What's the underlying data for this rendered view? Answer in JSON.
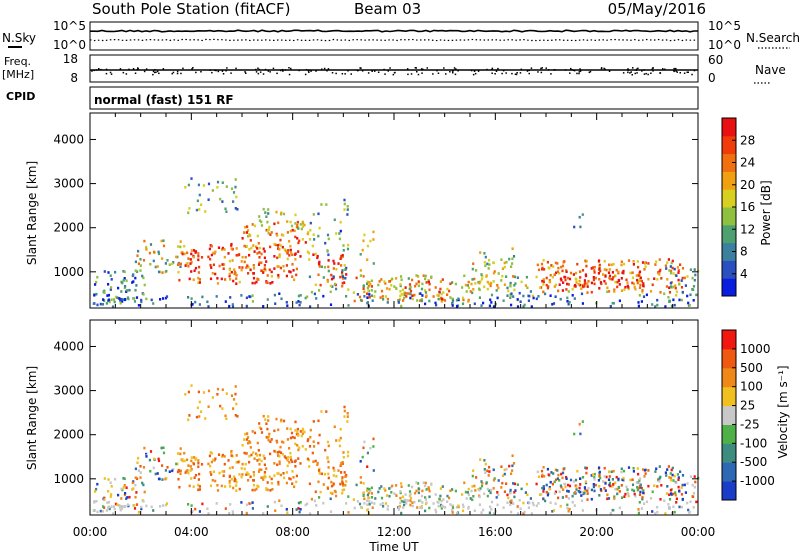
{
  "header": {
    "station": "South Pole Station (fitACF)",
    "beam": "Beam 03",
    "date": "05/May/2016"
  },
  "left_labels": {
    "nsky": "N.Sky",
    "freq_line1": "Freq.",
    "freq_line2": "[MHz]",
    "cpid": "CPID"
  },
  "right_labels": {
    "nsearch": "N.Search",
    "nave": "Nave"
  },
  "noise_panel": {
    "left_ticks": [
      "10^5",
      "10^0"
    ],
    "right_ticks": [
      "10^5",
      "10^0"
    ]
  },
  "freq_panel": {
    "left_ticks": [
      "18",
      "8"
    ],
    "right_ticks": [
      "60",
      "0"
    ]
  },
  "cpid_text": "normal (fast) 151 RF",
  "power_colorbar": {
    "label": "Power [dB]",
    "ticks": [
      "28",
      "24",
      "20",
      "16",
      "12",
      "8",
      "4"
    ],
    "colors": [
      "#0a1ee0",
      "#2a50c0",
      "#3c80a0",
      "#4fa070",
      "#90c040",
      "#d8d020",
      "#f0a010",
      "#f07010",
      "#f03c0a",
      "#e81010"
    ]
  },
  "velocity_colorbar": {
    "label": "Velocity [m s⁻¹]",
    "ticks": [
      "1000",
      "500",
      "100",
      "25",
      "-25",
      "-100",
      "-500",
      "-1000"
    ],
    "colors": [
      "#1a3cc8",
      "#2c68b4",
      "#3c8c80",
      "#50b048",
      "#c8c8c8",
      "#f0c020",
      "#f08818",
      "#f05a10",
      "#f01810"
    ]
  },
  "chart_data": [
    {
      "type": "heatmap",
      "name": "power",
      "ylabel": "Slant Range [km]",
      "yticks": [
        1000,
        2000,
        3000,
        4000
      ],
      "ylim": [
        180,
        4600
      ],
      "xlim": [
        0,
        24
      ]
    },
    {
      "type": "heatmap",
      "name": "velocity",
      "ylabel": "Slant Range [km]",
      "yticks": [
        1000,
        2000,
        3000,
        4000
      ],
      "ylim": [
        180,
        4600
      ],
      "xlim": [
        0,
        24
      ],
      "xlabel": "Time UT",
      "xticks": [
        "00:00",
        "04:00",
        "08:00",
        "12:00",
        "16:00",
        "20:00",
        "00:00"
      ]
    }
  ]
}
